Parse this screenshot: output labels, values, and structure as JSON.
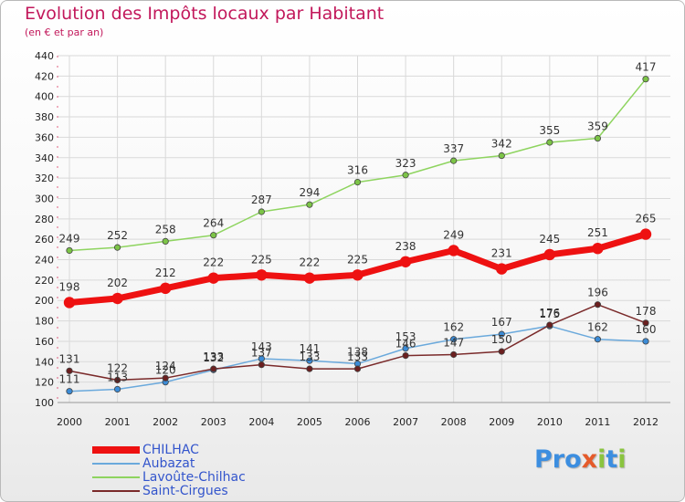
{
  "title": "Evolution des Impôts locaux par Habitant",
  "subtitle": "(en € et par an)",
  "logo": {
    "p1": "Pro",
    "x": "x",
    "i": "i",
    "t": "t",
    "i2": "i"
  },
  "colors": {
    "title": "#c2185b",
    "grid": "#d9d9d9",
    "axis_ticks": "#e06080"
  },
  "chart_data": {
    "type": "line",
    "title": "Evolution des Impôts locaux par Habitant",
    "subtitle": "(en € et par an)",
    "x": [
      2000,
      2001,
      2002,
      2003,
      2004,
      2005,
      2006,
      2007,
      2008,
      2009,
      2010,
      2011,
      2012
    ],
    "xlabels": [
      "2000",
      "2001",
      "2002",
      "2003",
      "2004",
      "2005",
      "2006",
      "2007",
      "2008",
      "2009",
      "2010",
      "2011",
      "2012"
    ],
    "ylim": [
      100,
      440
    ],
    "yticks": [
      100,
      120,
      140,
      160,
      180,
      200,
      220,
      240,
      260,
      280,
      300,
      320,
      340,
      360,
      380,
      400,
      420,
      440
    ],
    "grid": true,
    "legend_position": "bottom-left",
    "series": [
      {
        "name": "Lavoûte-Chilhac",
        "color": "#8ed45f",
        "marker": "#7cc447",
        "width": 1.5,
        "radius": 3.2,
        "values": [
          249,
          252,
          258,
          264,
          287,
          294,
          316,
          323,
          337,
          342,
          355,
          359,
          417
        ],
        "labels": [
          "249",
          "252",
          "258",
          "264",
          "287",
          "294",
          "316",
          "323",
          "337",
          "342",
          "355",
          "359",
          "417"
        ]
      },
      {
        "name": "Aubazat",
        "color": "#6aa9dc",
        "marker": "#3b8bd6",
        "width": 1.5,
        "radius": 3.2,
        "values": [
          111,
          113,
          120,
          132,
          143,
          141,
          138,
          153,
          162,
          167,
          175,
          162,
          160
        ],
        "labels": [
          "111",
          "113",
          "120",
          "132",
          "143",
          "141",
          "138",
          "153",
          "162",
          "167",
          "175",
          "162",
          "160"
        ]
      },
      {
        "name": "Saint-Cirgues",
        "color": "#7a2a2a",
        "marker": "#6b1f1f",
        "width": 1.5,
        "radius": 3.2,
        "values": [
          131,
          122,
          124,
          133,
          137,
          133,
          133,
          146,
          147,
          150,
          176,
          196,
          178
        ],
        "labels": [
          "131",
          "122",
          "124",
          "133",
          "137",
          "133",
          "133",
          "146",
          "147",
          "150",
          "176",
          "196",
          "178"
        ]
      },
      {
        "name": "CHILHAC",
        "color": "#ee1111",
        "marker": "#ee1111",
        "width": 7,
        "radius": 6.2,
        "values": [
          198,
          202,
          212,
          222,
          225,
          222,
          225,
          238,
          249,
          231,
          245,
          251,
          265
        ],
        "labels": [
          "198",
          "202",
          "212",
          "222",
          "225",
          "222",
          "225",
          "238",
          "249",
          "231",
          "245",
          "251",
          "265"
        ]
      }
    ]
  },
  "legend": [
    {
      "label": "CHILHAC",
      "color": "#ee1111",
      "thickness": 8
    },
    {
      "label": "Aubazat",
      "color": "#6aa9dc",
      "thickness": 2
    },
    {
      "label": "Lavoûte-Chilhac",
      "color": "#8ed45f",
      "thickness": 2
    },
    {
      "label": "Saint-Cirgues",
      "color": "#7a2a2a",
      "thickness": 2
    }
  ]
}
